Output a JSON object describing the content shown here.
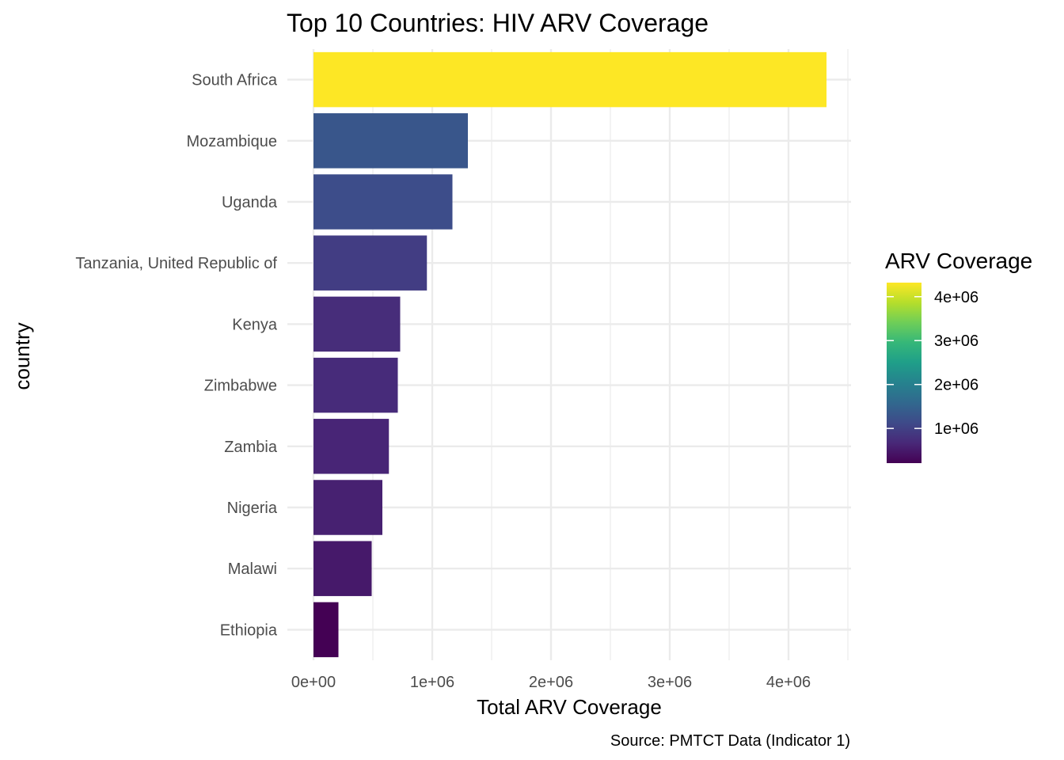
{
  "chart_data": {
    "type": "bar",
    "orientation": "horizontal",
    "title": "Top 10 Countries: HIV ARV Coverage",
    "xlabel": "Total ARV Coverage",
    "ylabel": "country",
    "caption": "Source: PMTCT Data (Indicator 1)",
    "categories": [
      "South Africa",
      "Mozambique",
      "Uganda",
      "Tanzania, United Republic of",
      "Kenya",
      "Zimbabwe",
      "Zambia",
      "Nigeria",
      "Malawi",
      "Ethiopia"
    ],
    "values": [
      4320000,
      1300000,
      1170000,
      955000,
      730000,
      710000,
      635000,
      580000,
      490000,
      210000
    ],
    "xlim": [
      0,
      4500000
    ],
    "xticks": [
      0,
      1000000,
      2000000,
      3000000,
      4000000
    ],
    "xtick_labels": [
      "0e+00",
      "1e+06",
      "2e+06",
      "3e+06",
      "4e+06"
    ],
    "grid": true,
    "legend": {
      "title": "ARV Coverage",
      "placement": "right",
      "type": "colorbar",
      "palette": "viridis",
      "range": [
        210000,
        4320000
      ],
      "ticks": [
        1000000,
        2000000,
        3000000,
        4000000
      ],
      "tick_labels": [
        "1e+06",
        "2e+06",
        "3e+06",
        "4e+06"
      ]
    },
    "colors": {
      "viridis": [
        "#440154",
        "#482878",
        "#3e4a89",
        "#31688e",
        "#26828e",
        "#1f9e89",
        "#35b779",
        "#6ece58",
        "#b5de2b",
        "#fde725"
      ],
      "grid": "#ebebeb",
      "tick_text": "#4d4d4d"
    }
  }
}
